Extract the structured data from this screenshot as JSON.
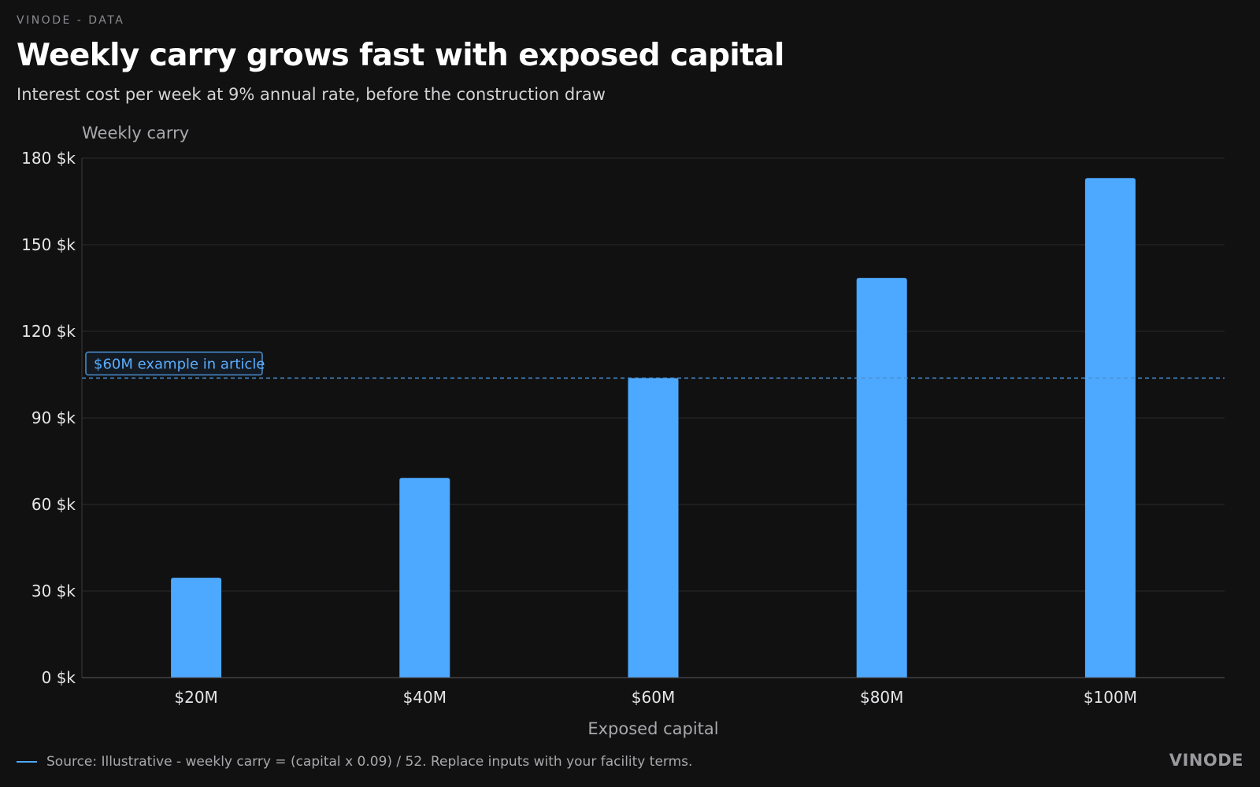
{
  "header": {
    "eyebrow": "VINODE - DATA",
    "title": "Weekly carry grows fast with exposed capital",
    "subtitle": "Interest cost per week at 9% annual rate, before the construction draw"
  },
  "chart_data": {
    "type": "bar",
    "categories": [
      "$20M",
      "$40M",
      "$60M",
      "$80M",
      "$100M"
    ],
    "values": [
      34.6,
      69.2,
      103.8,
      138.5,
      173.1
    ],
    "ylabel": "Weekly carry",
    "xlabel": "Exposed capital",
    "ylim": [
      0,
      180
    ],
    "yticks": [
      0,
      30,
      60,
      90,
      120,
      150,
      180
    ],
    "ytick_labels": [
      "0 $k",
      "30 $k",
      "60 $k",
      "90 $k",
      "120 $k",
      "150 $k",
      "180 $k"
    ],
    "grid": true,
    "bar_color": "#4da9ff",
    "reference_line": {
      "value": 103.8,
      "label": "$60M example in article",
      "style": "dashed",
      "color": "#4a8fd0"
    }
  },
  "footer": {
    "source": "Source: Illustrative - weekly carry = (capital x 0.09) / 52. Replace inputs with your facility terms.",
    "brand": "VINODE"
  },
  "colors": {
    "background": "#111112",
    "accent": "#4da9ff",
    "grid": "#2a2a2d",
    "text": "#ffffff",
    "muted": "#a9a9ad"
  }
}
